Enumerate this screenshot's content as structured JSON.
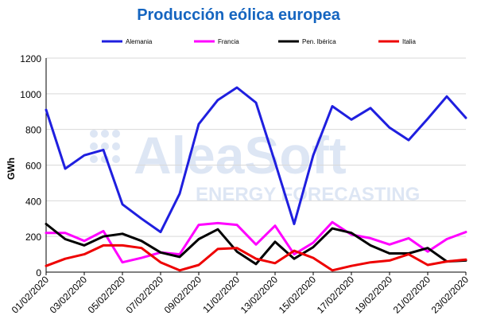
{
  "chart_data": {
    "type": "line",
    "title": "Producción eólica europea",
    "ylabel": "GWh",
    "xlabel": "",
    "ylim": [
      0,
      1200
    ],
    "yticks": [
      0,
      200,
      400,
      600,
      800,
      1000,
      1200
    ],
    "grid": "horizontal",
    "legend_placement": "top",
    "x": [
      "01/02/2020",
      "02/02/2020",
      "03/02/2020",
      "04/02/2020",
      "05/02/2020",
      "06/02/2020",
      "07/02/2020",
      "08/02/2020",
      "09/02/2020",
      "10/02/2020",
      "11/02/2020",
      "12/02/2020",
      "13/02/2020",
      "14/02/2020",
      "15/02/2020",
      "16/02/2020",
      "17/02/2020",
      "18/02/2020",
      "19/02/2020",
      "20/02/2020",
      "21/02/2020",
      "22/02/2020",
      "23/02/2020"
    ],
    "xtick_labels": [
      "01/02/2020",
      "03/02/2020",
      "05/02/2020",
      "07/02/2020",
      "09/02/2020",
      "11/02/2020",
      "13/02/2020",
      "15/02/2020",
      "17/02/2020",
      "19/02/2020",
      "21/02/2020",
      "23/02/2020"
    ],
    "series": [
      {
        "name": "Alemania",
        "color": "#1f1fdf",
        "values": [
          910,
          580,
          655,
          685,
          380,
          300,
          225,
          440,
          830,
          965,
          1035,
          950,
          615,
          270,
          655,
          930,
          855,
          920,
          810,
          740,
          860,
          985,
          865
        ]
      },
      {
        "name": "Francia",
        "color": "#ff00ff",
        "values": [
          220,
          220,
          175,
          230,
          55,
          80,
          110,
          100,
          265,
          275,
          265,
          155,
          260,
          100,
          165,
          280,
          210,
          190,
          155,
          190,
          115,
          185,
          225
        ]
      },
      {
        "name": "Pen. Ibérica",
        "color": "#000000",
        "values": [
          270,
          185,
          150,
          200,
          215,
          175,
          110,
          85,
          185,
          240,
          115,
          45,
          170,
          75,
          140,
          245,
          220,
          150,
          105,
          105,
          135,
          60,
          65
        ]
      },
      {
        "name": "Italia",
        "color": "#ee0000",
        "values": [
          35,
          75,
          100,
          150,
          150,
          135,
          55,
          10,
          40,
          130,
          135,
          75,
          50,
          120,
          80,
          10,
          35,
          55,
          65,
          100,
          40,
          60,
          70
        ]
      }
    ]
  },
  "watermark": {
    "brand": "AleaSoft",
    "tagline": "ENERGY FORECASTING"
  }
}
